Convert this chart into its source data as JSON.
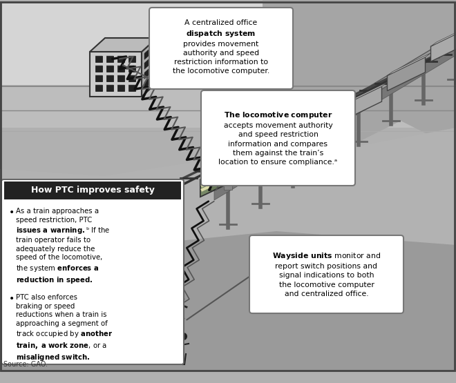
{
  "fig_width": 6.6,
  "fig_height": 5.55,
  "dpi": 100,
  "bg_color": "#b0b0b0",
  "sky_color": "#c8c8c8",
  "terrain_color": "#a8a8a8",
  "ground_color": "#989898",
  "callout_bg": "#ffffff",
  "callout_border": "#888888",
  "left_box_header_bg": "#222222",
  "left_box_header_color": "#ffffff",
  "left_box_bg": "#ffffff",
  "source_text": "Source: GAO.",
  "box1_text_plain": "A centralized office\n",
  "box1_text_bold": "dispatch system\n",
  "box1_text_rest": "provides movement\nauthority and speed\nrestriction information to\nthe locomotive computer.",
  "box2_text_bold": "The locomotive computer\n",
  "box2_text_rest": "accepts movement authority\nand speed restriction\ninformation and compares\nthem against the train’s\nlocation to ensure compliance.ᵃ",
  "box3_text_bold": "Wayside units",
  "box3_text_rest": " monitor and\nreport switch positions and\nsignal indications to both\nthe locomotive computer\nand centralized office.",
  "left_header": "How PTC improves safety",
  "b1_pre": "As a train approaches a\nspeed restriction, PTC\n",
  "b1_bold1": "issues a warning.",
  "b1_super": "ᵇ",
  "b1_mid": " If the\ntrain operator fails to\nadequately reduce the\nspeed of the locomotive,\nthe system ",
  "b1_bold2": "enforces a\nreduction in speed.",
  "b2_pre": "PTC also enforces\nbraking or speed\nreductions when a train is\napproaching a segment of\ntrack occupied by ",
  "b2_bold1": "another\ntrain, a work zone",
  "b2_mid": ", or a\n",
  "b2_bold2": "misaligned switch."
}
